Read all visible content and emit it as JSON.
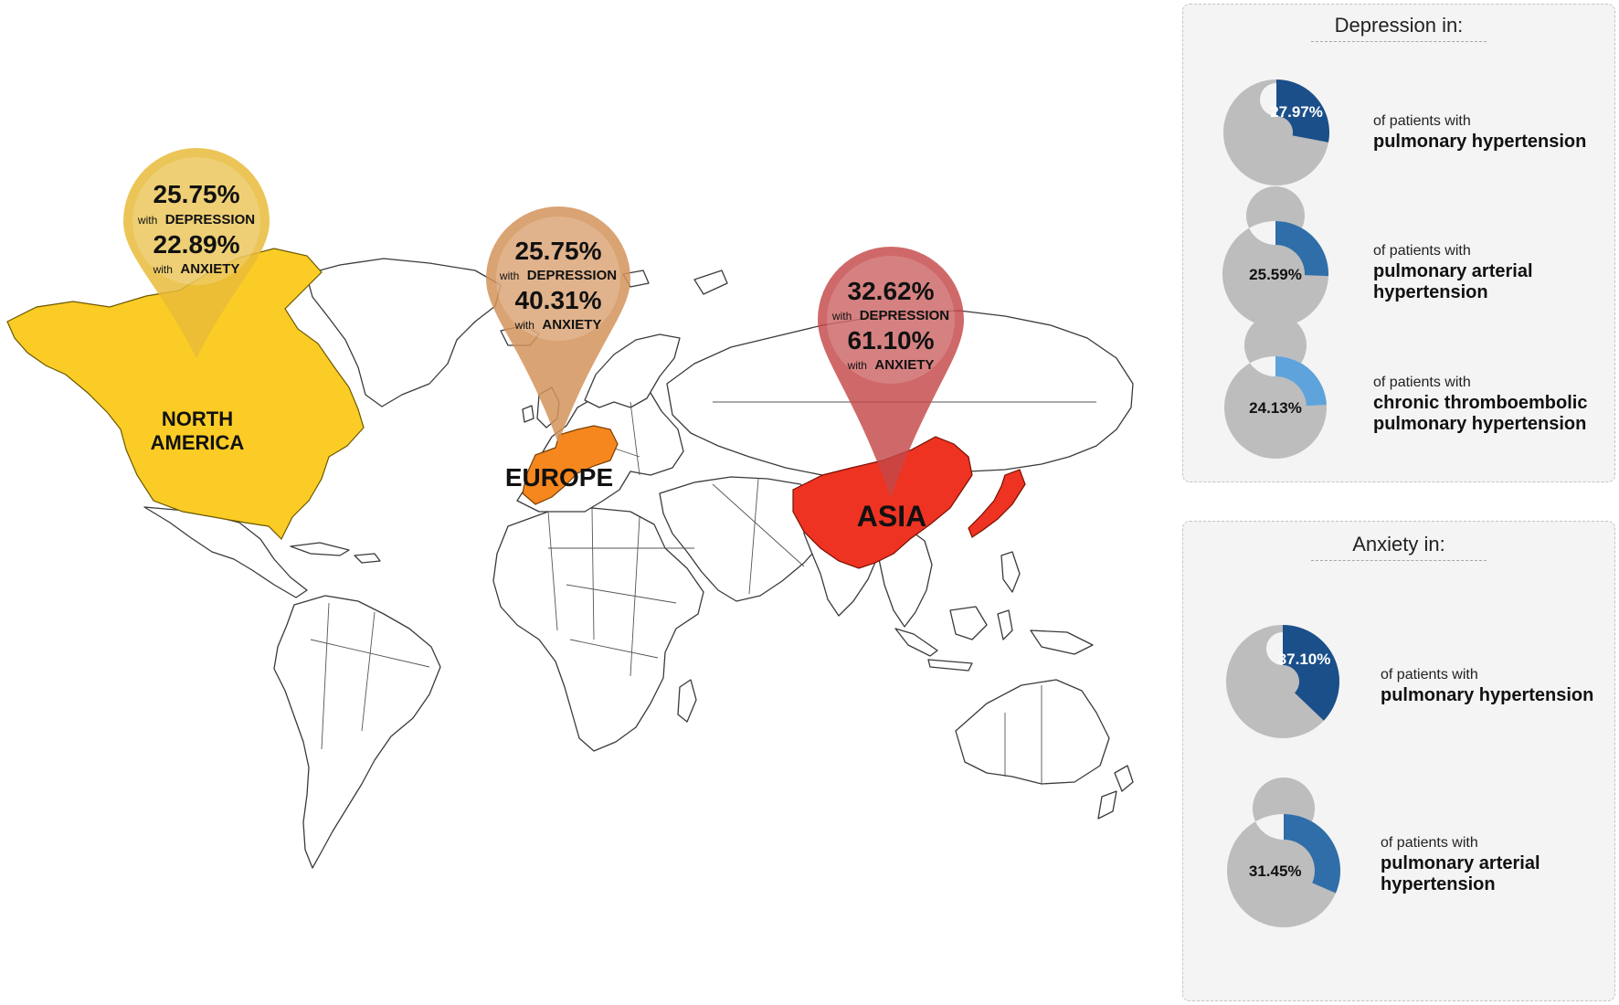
{
  "colors": {
    "north_america": "#fbcc25",
    "europe": "#f6871f",
    "asia": "#ee3322",
    "pin_north_america": "#e8bb3a",
    "pin_europe": "#d4935a",
    "pin_asia": "#c54848",
    "donut_track": "#bdbdbd",
    "donut_dark_blue": "#1b4f8a",
    "donut_mid_blue": "#2f6ea9",
    "donut_light_blue": "#5fa3dc"
  },
  "regions": [
    {
      "id": "north-america",
      "label_lines": [
        "NORTH",
        "AMERICA"
      ],
      "depression_pct": "25.75%",
      "depression_label_small": "with",
      "depression_label_bold": "DEPRESSION",
      "anxiety_pct": "22.89%",
      "anxiety_label_small": "with",
      "anxiety_label_bold": "ANXIETY"
    },
    {
      "id": "europe",
      "label_lines": [
        "EUROPE"
      ],
      "depression_pct": "25.75%",
      "depression_label_small": "with",
      "depression_label_bold": "DEPRESSION",
      "anxiety_pct": "40.31%",
      "anxiety_label_small": "with",
      "anxiety_label_bold": "ANXIETY"
    },
    {
      "id": "asia",
      "label_lines": [
        "ASIA"
      ],
      "depression_pct": "32.62%",
      "depression_label_small": "with",
      "depression_label_bold": "DEPRESSION",
      "anxiety_pct": "61.10%",
      "anxiety_label_small": "with",
      "anxiety_label_bold": "ANXIETY"
    }
  ],
  "depression_panel": {
    "title": "Depression in:",
    "items": [
      {
        "value_label": "27.97%",
        "fraction": 0.2797,
        "color": "#1b4f8a",
        "label_color": "#ffffff",
        "lead": "of patients with",
        "strong_lines": [
          "pulmonary hypertension"
        ]
      },
      {
        "value_label": "25.59%",
        "fraction": 0.2559,
        "color": "#2f6ea9",
        "label_color": "#111111",
        "lead": "of patients with",
        "strong_lines": [
          "pulmonary arterial",
          "hypertension"
        ]
      },
      {
        "value_label": "24.13%",
        "fraction": 0.2413,
        "color": "#5fa3dc",
        "label_color": "#111111",
        "lead": "of patients with",
        "strong_lines": [
          "chronic thromboembolic",
          "pulmonary hypertension"
        ]
      }
    ]
  },
  "anxiety_panel": {
    "title": "Anxiety in:",
    "items": [
      {
        "value_label": "37.10%",
        "fraction": 0.371,
        "color": "#1b4f8a",
        "label_color": "#ffffff",
        "lead": "of patients with",
        "strong_lines": [
          "pulmonary hypertension"
        ]
      },
      {
        "value_label": "31.45%",
        "fraction": 0.3145,
        "color": "#2f6ea9",
        "label_color": "#111111",
        "lead": "of patients with",
        "strong_lines": [
          "pulmonary arterial",
          "hypertension"
        ]
      }
    ]
  }
}
